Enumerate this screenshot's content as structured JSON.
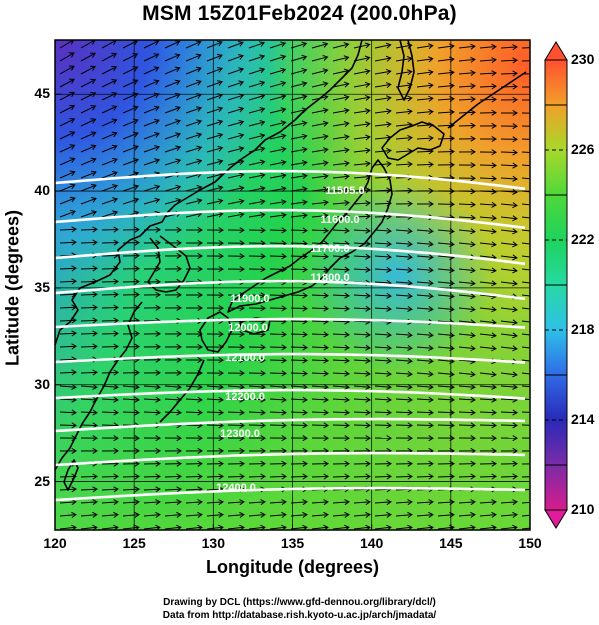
{
  "title": "MSM 15Z01Feb2024 (200.0hPa)",
  "xlabel": "Longitude (degrees)",
  "ylabel": "Latitude  (degrees)",
  "credits": {
    "line1": "Drawing by DCL (https://www.gfd-dennou.org/library/dcl/)",
    "line2": "Data from http://database.rish.kyoto-u.ac.jp/arch/jmadata/"
  },
  "x_ticks": [
    "120",
    "125",
    "130",
    "135",
    "140",
    "145",
    "150"
  ],
  "y_ticks": [
    "25",
    "30",
    "35",
    "40",
    "45"
  ],
  "colorbar": {
    "min": 210,
    "max": 230,
    "labels": [
      "230",
      "226",
      "222",
      "218",
      "214",
      "210"
    ]
  },
  "contour_labels": [
    "11505.0",
    "11600.0",
    "11700.0",
    "11800.0",
    "11900.0",
    "12000.0",
    "12100.0",
    "12200.0",
    "12300.0",
    "12400.0"
  ],
  "colors": {
    "colorbar": [
      "#d81c8c",
      "#7a2ca8",
      "#2a2ab8",
      "#2f6be6",
      "#2ec0e8",
      "#27d9a2",
      "#1dd35c",
      "#4fd83a",
      "#a8d82a",
      "#e6c829",
      "#f2902a",
      "#ff5030"
    ],
    "contour": "#ffffff",
    "vector": "#000000",
    "coast": "#000000"
  }
}
